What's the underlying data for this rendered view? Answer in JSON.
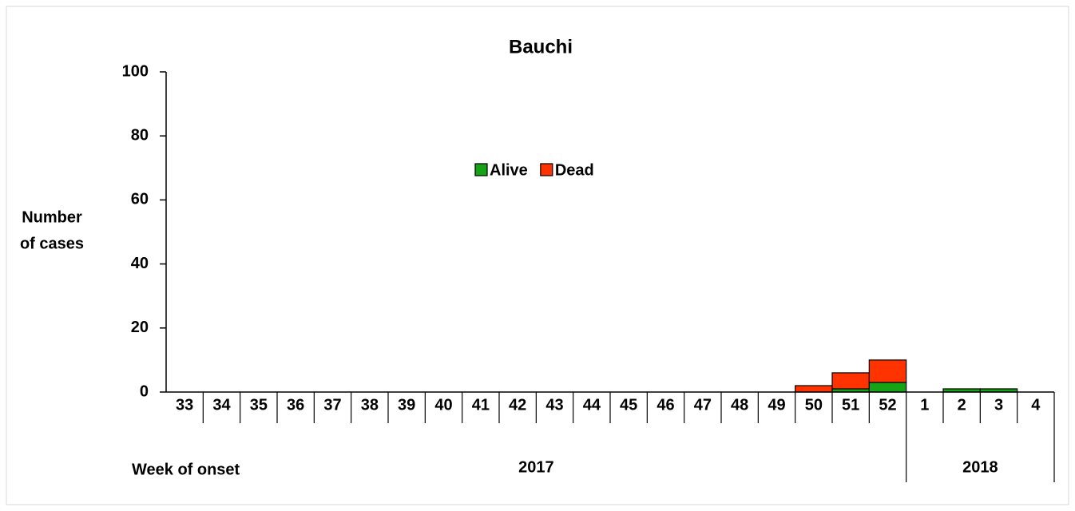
{
  "chart_data": {
    "type": "stacked_bar",
    "title": "Bauchi",
    "ylabel_lines": [
      "Number",
      "of cases"
    ],
    "xlabel": "Week of onset",
    "categories": [
      "33",
      "34",
      "35",
      "36",
      "37",
      "38",
      "39",
      "40",
      "41",
      "42",
      "43",
      "44",
      "45",
      "46",
      "47",
      "48",
      "49",
      "50",
      "51",
      "52",
      "1",
      "2",
      "3",
      "4"
    ],
    "year_labels": [
      "2017",
      "2018"
    ],
    "series": [
      {
        "name": "Alive",
        "color": "#16a316",
        "values": [
          0,
          0,
          0,
          0,
          0,
          0,
          0,
          0,
          0,
          0,
          0,
          0,
          0,
          0,
          0,
          0,
          0,
          0,
          1,
          3,
          0,
          1,
          1,
          0
        ]
      },
      {
        "name": "Dead",
        "color": "#ff3300",
        "values": [
          0,
          0,
          0,
          0,
          0,
          0,
          0,
          0,
          0,
          0,
          0,
          0,
          0,
          0,
          0,
          0,
          0,
          2,
          5,
          7,
          0,
          0,
          0,
          0
        ]
      }
    ],
    "ylim": [
      0,
      100
    ],
    "yticks": [
      0,
      20,
      40,
      60,
      80,
      100
    ],
    "legend": "top"
  }
}
